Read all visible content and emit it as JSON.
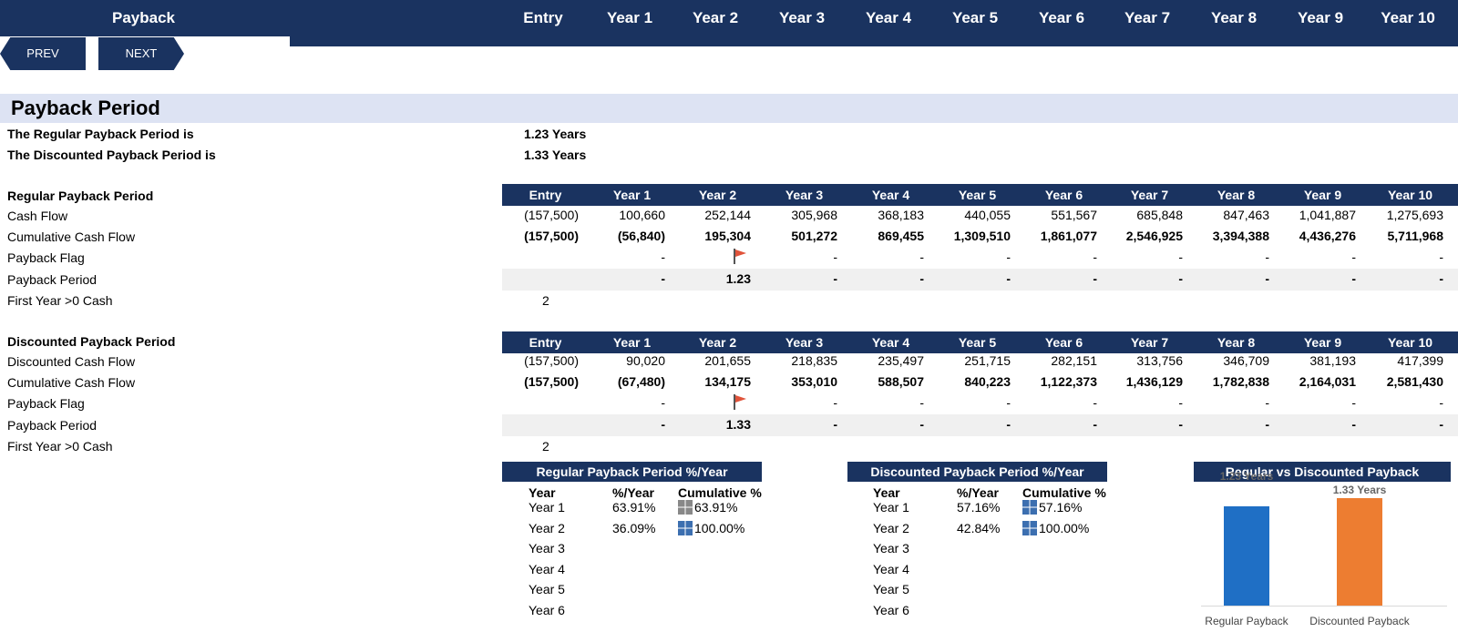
{
  "nav": {
    "title": "Payback",
    "columns": [
      "Entry",
      "Year 1",
      "Year 2",
      "Year 3",
      "Year 4",
      "Year 5",
      "Year 6",
      "Year 7",
      "Year 8",
      "Year 9",
      "Year 10"
    ],
    "prev_label": "PREV",
    "next_label": "NEXT"
  },
  "section_title": "Payback Period",
  "summary": {
    "regular_label": "The Regular Payback Period is",
    "regular_value": "1.23 Years",
    "discounted_label": "The Discounted Payback Period is",
    "discounted_value": "1.33 Years"
  },
  "regular": {
    "title": "Regular Payback Period",
    "headers": [
      "Entry",
      "Year 1",
      "Year 2",
      "Year 3",
      "Year 4",
      "Year 5",
      "Year 6",
      "Year 7",
      "Year 8",
      "Year 9",
      "Year 10"
    ],
    "rows": {
      "cash_flow_label": "Cash Flow",
      "cash_flow": [
        "(157,500)",
        "100,660",
        "252,144",
        "305,968",
        "368,183",
        "440,055",
        "551,567",
        "685,848",
        "847,463",
        "1,041,887",
        "1,275,693"
      ],
      "cumulative_label": "Cumulative Cash Flow",
      "cumulative": [
        "(157,500)",
        "(56,840)",
        "195,304",
        "501,272",
        "869,455",
        "1,309,510",
        "1,861,077",
        "2,546,925",
        "3,394,388",
        "4,436,276",
        "5,711,968"
      ],
      "flag_label": "Payback Flag",
      "flag": [
        "",
        "-",
        "flag",
        "-",
        "-",
        "-",
        "-",
        "-",
        "-",
        "-",
        "-"
      ],
      "period_label": "Payback Period",
      "period": [
        "",
        "-",
        "1.23",
        "-",
        "-",
        "-",
        "-",
        "-",
        "-",
        "-",
        "-"
      ],
      "first_year_label": "First Year >0 Cash",
      "first_year": "2"
    }
  },
  "discounted": {
    "title": "Discounted Payback Period",
    "headers": [
      "Entry",
      "Year 1",
      "Year 2",
      "Year 3",
      "Year 4",
      "Year 5",
      "Year 6",
      "Year 7",
      "Year 8",
      "Year 9",
      "Year 10"
    ],
    "rows": {
      "cash_flow_label": "Discounted Cash Flow",
      "cash_flow": [
        "(157,500)",
        "90,020",
        "201,655",
        "218,835",
        "235,497",
        "251,715",
        "282,151",
        "313,756",
        "346,709",
        "381,193",
        "417,399"
      ],
      "cumulative_label": "Cumulative Cash Flow",
      "cumulative": [
        "(157,500)",
        "(67,480)",
        "134,175",
        "353,010",
        "588,507",
        "840,223",
        "1,122,373",
        "1,436,129",
        "1,782,838",
        "2,164,031",
        "2,581,430"
      ],
      "flag_label": "Payback Flag",
      "flag": [
        "",
        "-",
        "flag",
        "-",
        "-",
        "-",
        "-",
        "-",
        "-",
        "-",
        "-"
      ],
      "period_label": "Payback Period",
      "period": [
        "",
        "-",
        "1.33",
        "-",
        "-",
        "-",
        "-",
        "-",
        "-",
        "-",
        "-"
      ],
      "first_year_label": "First Year >0 Cash",
      "first_year": "2"
    }
  },
  "regular_pct": {
    "title": "Regular Payback Period %/Year",
    "col_year": "Year",
    "col_pct": "%/Year",
    "col_cum": "Cumulative %",
    "rows": [
      {
        "year": "Year 1",
        "pct": "63.91%",
        "cum": "63.91%"
      },
      {
        "year": "Year 2",
        "pct": "36.09%",
        "cum": "100.00%"
      },
      {
        "year": "Year 3",
        "pct": "",
        "cum": ""
      },
      {
        "year": "Year 4",
        "pct": "",
        "cum": ""
      },
      {
        "year": "Year 5",
        "pct": "",
        "cum": ""
      },
      {
        "year": "Year 6",
        "pct": "",
        "cum": ""
      }
    ]
  },
  "discounted_pct": {
    "title": "Discounted Payback Period %/Year",
    "col_year": "Year",
    "col_pct": "%/Year",
    "col_cum": "Cumulative %",
    "rows": [
      {
        "year": "Year 1",
        "pct": "57.16%",
        "cum": "57.16%"
      },
      {
        "year": "Year 2",
        "pct": "42.84%",
        "cum": "100.00%"
      },
      {
        "year": "Year 3",
        "pct": "",
        "cum": ""
      },
      {
        "year": "Year 4",
        "pct": "",
        "cum": ""
      },
      {
        "year": "Year 5",
        "pct": "",
        "cum": ""
      },
      {
        "year": "Year 6",
        "pct": "",
        "cum": ""
      }
    ]
  },
  "chart_data": {
    "type": "bar",
    "title": "Regular vs Discounted Payback",
    "categories": [
      "Regular Payback",
      "Discounted Payback"
    ],
    "values": [
      1.23,
      1.33
    ],
    "data_labels": [
      "1.23 Years",
      "1.33 Years"
    ],
    "colors": [
      "#1f6fc5",
      "#ed7d31"
    ],
    "ylim": [
      0,
      1.33
    ]
  },
  "colors": {
    "navy": "#1a3360",
    "section_bg": "#dde3f3",
    "flag_red": "#e0533a"
  }
}
